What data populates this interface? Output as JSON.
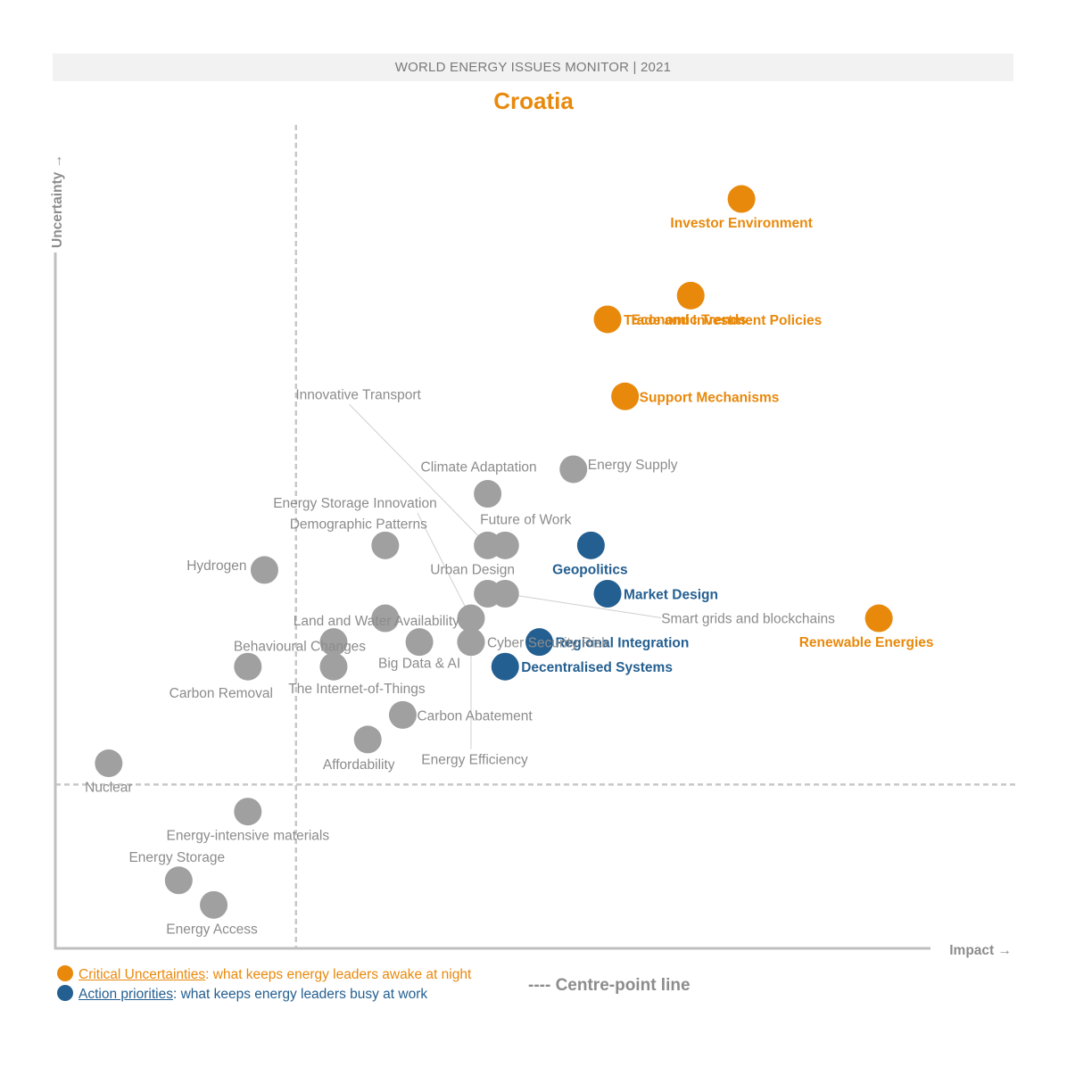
{
  "header": {
    "banner": "WORLD ENERGY ISSUES MONITOR | 2021",
    "country": "Croatia"
  },
  "colors": {
    "critical": "#e8890c",
    "action": "#245f91",
    "other": "#a0a0a0",
    "other_text": "#8c8c8c",
    "axis": "#bfbfbf"
  },
  "legend": {
    "critical_key": "Critical Uncertainties",
    "critical_text": ": what keeps energy leaders awake at night",
    "action_key": "Action priorities",
    "action_text": ": what keeps energy leaders busy at work",
    "centre_line": "---- Centre-point line"
  },
  "chart_data": {
    "type": "scatter",
    "title": "Croatia",
    "xlabel": "Impact →",
    "ylabel": "Uncertainty →",
    "xlim": [
      0,
      100
    ],
    "ylim": [
      0,
      100
    ],
    "centre_point": {
      "x": 27.5,
      "y": 20
    },
    "points": [
      {
        "name": "Investor Environment",
        "x": 78.4,
        "y": 91.5,
        "category": "critical"
      },
      {
        "name": "Economic Trends",
        "x": 72.6,
        "y": 79.7,
        "category": "critical"
      },
      {
        "name": "Trade and Investment Policies",
        "x": 63.1,
        "y": 76.8,
        "category": "critical"
      },
      {
        "name": "Support Mechanisms",
        "x": 65.1,
        "y": 67.4,
        "category": "critical"
      },
      {
        "name": "Renewable Energies",
        "x": 94.1,
        "y": 40.3,
        "category": "critical"
      },
      {
        "name": "Geopolitics",
        "x": 61.2,
        "y": 49.2,
        "category": "action"
      },
      {
        "name": "Market Design",
        "x": 63.1,
        "y": 43.3,
        "category": "action"
      },
      {
        "name": "Regional Integration",
        "x": 55.3,
        "y": 37.4,
        "category": "action"
      },
      {
        "name": "Decentralised Systems",
        "x": 51.4,
        "y": 34.4,
        "category": "action"
      },
      {
        "name": "Energy Supply",
        "x": 59.2,
        "y": 58.5,
        "category": "other"
      },
      {
        "name": "Climate Adaptation",
        "x": 49.4,
        "y": 55.5,
        "category": "other"
      },
      {
        "name": "Innovative Transport",
        "x": 49.4,
        "y": 49.2,
        "category": "other"
      },
      {
        "name": "Future of Work",
        "x": 51.4,
        "y": 49.2,
        "category": "other"
      },
      {
        "name": "Energy Storage Innovation",
        "x": 47.5,
        "y": 40.3,
        "category": "other"
      },
      {
        "name": "Demographic Patterns",
        "x": 37.7,
        "y": 49.2,
        "category": "other"
      },
      {
        "name": "Hydrogen",
        "x": 23.9,
        "y": 46.2,
        "category": "other"
      },
      {
        "name": "Urban Design",
        "x": 49.4,
        "y": 43.3,
        "category": "other"
      },
      {
        "name": "Smart grids and blockchains",
        "x": 51.4,
        "y": 43.3,
        "category": "other"
      },
      {
        "name": "Land and Water Availability",
        "x": 37.7,
        "y": 40.3,
        "category": "other"
      },
      {
        "name": "Cyber Security Risk",
        "x": 47.5,
        "y": 37.4,
        "category": "other"
      },
      {
        "name": "Behavioural Changes",
        "x": 31.8,
        "y": 37.4,
        "category": "other"
      },
      {
        "name": "Big Data & AI",
        "x": 41.6,
        "y": 37.4,
        "category": "other"
      },
      {
        "name": "Carbon Removal",
        "x": 22.0,
        "y": 34.4,
        "category": "other"
      },
      {
        "name": "The Internet-of-Things",
        "x": 31.8,
        "y": 34.4,
        "category": "other"
      },
      {
        "name": "Carbon Abatement",
        "x": 39.7,
        "y": 28.5,
        "category": "other"
      },
      {
        "name": "Affordability",
        "x": 35.7,
        "y": 25.5,
        "category": "other"
      },
      {
        "name": "Energy Efficiency",
        "x": 47.5,
        "y": 37.4,
        "category": "other"
      },
      {
        "name": "Nuclear",
        "x": 6.1,
        "y": 22.6,
        "category": "other"
      },
      {
        "name": "Energy-intensive materials",
        "x": 22.0,
        "y": 16.7,
        "category": "other"
      },
      {
        "name": "Energy Storage",
        "x": 14.1,
        "y": 8.3,
        "category": "other"
      },
      {
        "name": "Energy Access",
        "x": 18.1,
        "y": 5.3,
        "category": "other"
      }
    ]
  }
}
